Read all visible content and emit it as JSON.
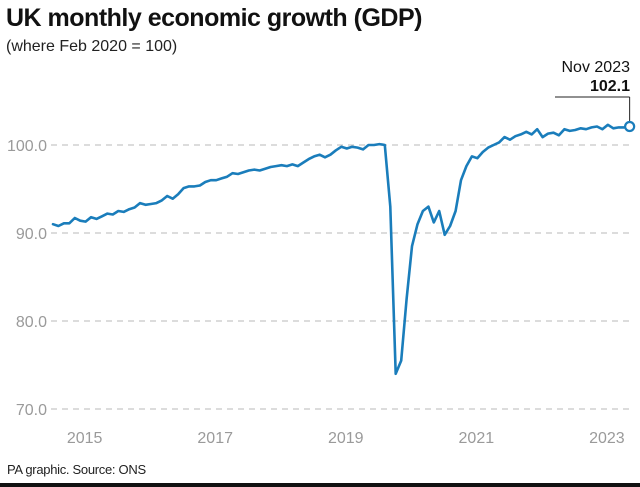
{
  "chart_data": {
    "type": "line",
    "title": "UK monthly economic growth (GDP)",
    "subtitle": "(where Feb 2020 = 100)",
    "source": "PA graphic. Source: ONS",
    "x_start": "2015-01",
    "x_end": "2023-11",
    "x_ticks": [
      "2015",
      "2017",
      "2019",
      "2021",
      "2023"
    ],
    "y_ticks": [
      "70.0",
      "80.0",
      "90.0",
      "100.0"
    ],
    "ylim": [
      70,
      102.5
    ],
    "grid": "horizontal dashed",
    "line_color": "#1a7dbb",
    "values": [
      91.0,
      90.8,
      91.1,
      91.1,
      91.7,
      91.4,
      91.3,
      91.8,
      91.6,
      91.9,
      92.2,
      92.1,
      92.5,
      92.4,
      92.7,
      92.9,
      93.4,
      93.2,
      93.3,
      93.4,
      93.7,
      94.2,
      93.9,
      94.4,
      95.1,
      95.3,
      95.3,
      95.4,
      95.8,
      96.0,
      96.0,
      96.2,
      96.4,
      96.8,
      96.7,
      96.9,
      97.1,
      97.2,
      97.1,
      97.3,
      97.5,
      97.6,
      97.7,
      97.6,
      97.8,
      97.6,
      98.0,
      98.4,
      98.7,
      98.9,
      98.6,
      98.9,
      99.4,
      99.8,
      99.6,
      99.8,
      99.7,
      99.5,
      100.0,
      100.0,
      100.1,
      100.0,
      93.0,
      74.0,
      75.5,
      82.5,
      88.5,
      91.0,
      92.5,
      93.0,
      91.2,
      92.5,
      89.8,
      90.8,
      92.5,
      96.0,
      97.6,
      98.7,
      98.5,
      99.2,
      99.7,
      100.0,
      100.3,
      100.9,
      100.6,
      101.0,
      101.2,
      101.5,
      101.2,
      101.8,
      100.9,
      101.3,
      101.4,
      101.1,
      101.8,
      101.6,
      101.7,
      101.9,
      101.8,
      102.0,
      102.1,
      101.8,
      102.3,
      101.9,
      102.0,
      102.0,
      102.1
    ],
    "annotation": {
      "label": "Nov 2023",
      "value": "102.1"
    }
  }
}
